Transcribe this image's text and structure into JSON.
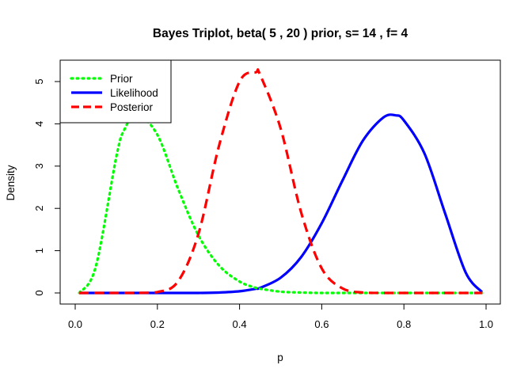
{
  "chart_data": {
    "type": "line",
    "title": "Bayes Triplot, beta( 5 , 20 ) prior, s= 14 , f= 4",
    "xlabel": "p",
    "ylabel": "Density",
    "xlim": [
      0,
      1
    ],
    "ylim": [
      0,
      5.4
    ],
    "x_ticks": [
      "0.0",
      "0.2",
      "0.4",
      "0.6",
      "0.8",
      "1.0"
    ],
    "y_ticks": [
      "0",
      "1",
      "2",
      "3",
      "4",
      "5"
    ],
    "grid": false,
    "legend_position": "top-left",
    "x": [
      0.01,
      0.05,
      0.1,
      0.12,
      0.15,
      0.2,
      0.25,
      0.3,
      0.35,
      0.4,
      0.44,
      0.45,
      0.5,
      0.55,
      0.6,
      0.65,
      0.7,
      0.75,
      0.78,
      0.8,
      0.85,
      0.9,
      0.95,
      0.99
    ],
    "series": [
      {
        "name": "Prior",
        "color": "#00ff00",
        "line_style": "dotted",
        "values": [
          0.0,
          0.62,
          3.22,
          3.87,
          4.22,
          3.74,
          2.47,
          1.36,
          0.65,
          0.27,
          0.12,
          0.1,
          0.03,
          0.01,
          0.0,
          0.0,
          0.0,
          0.0,
          0.0,
          0.0,
          0.0,
          0.0,
          0.0,
          0.0
        ]
      },
      {
        "name": "Likelihood",
        "color": "#0000ff",
        "line_style": "solid",
        "values": [
          0.0,
          0.0,
          0.0,
          0.0,
          0.0,
          0.0,
          0.0,
          0.0,
          0.01,
          0.04,
          0.1,
          0.12,
          0.36,
          0.85,
          1.65,
          2.65,
          3.6,
          4.15,
          4.2,
          4.08,
          3.3,
          1.89,
          0.49,
          0.02
        ]
      },
      {
        "name": "Posterior",
        "color": "#ff0000",
        "line_style": "dashed",
        "values": [
          0.0,
          0.0,
          0.0,
          0.0,
          0.0,
          0.02,
          0.27,
          1.4,
          3.48,
          5.0,
          5.22,
          5.16,
          3.89,
          1.9,
          0.58,
          0.11,
          0.01,
          0.0,
          0.0,
          0.0,
          0.0,
          0.0,
          0.0,
          0.0
        ]
      }
    ]
  }
}
